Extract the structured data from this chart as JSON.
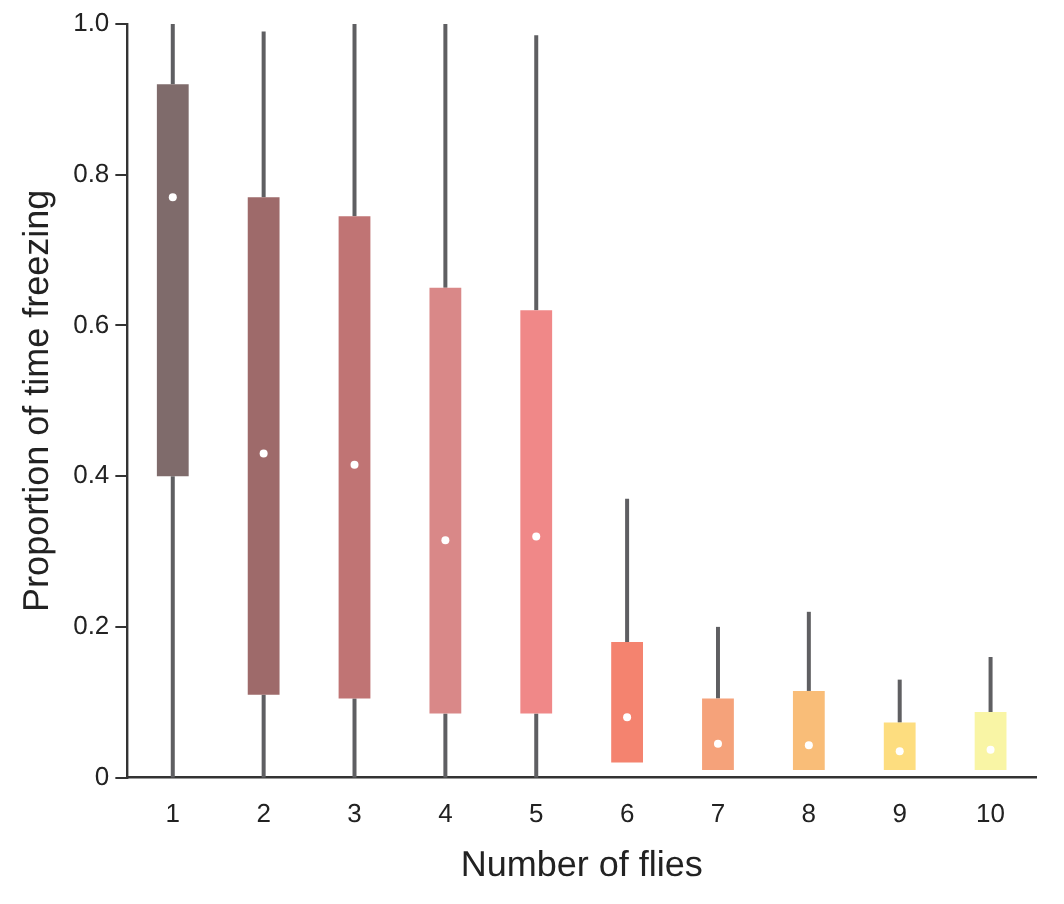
{
  "chart_data": {
    "type": "box",
    "xlabel": "Number of flies",
    "ylabel": "Proportion of time freezing",
    "categories": [
      "1",
      "2",
      "3",
      "4",
      "5",
      "6",
      "7",
      "8",
      "9",
      "10"
    ],
    "boxes": [
      {
        "low": 0,
        "q1": 0.4,
        "median": 0.77,
        "q3": 0.92,
        "high": 1.0
      },
      {
        "low": 0,
        "q1": 0.11,
        "median": 0.43,
        "q3": 0.77,
        "high": 0.99
      },
      {
        "low": 0,
        "q1": 0.105,
        "median": 0.415,
        "q3": 0.745,
        "high": 1.0
      },
      {
        "low": 0,
        "q1": 0.085,
        "median": 0.315,
        "q3": 0.65,
        "high": 1.0
      },
      {
        "low": 0,
        "q1": 0.085,
        "median": 0.32,
        "q3": 0.62,
        "high": 0.985
      },
      {
        "low": 0.02,
        "q1": 0.02,
        "median": 0.08,
        "q3": 0.18,
        "high": 0.37
      },
      {
        "low": 0.01,
        "q1": 0.01,
        "median": 0.045,
        "q3": 0.105,
        "high": 0.2
      },
      {
        "low": 0.01,
        "q1": 0.01,
        "median": 0.043,
        "q3": 0.115,
        "high": 0.22
      },
      {
        "low": 0.01,
        "q1": 0.01,
        "median": 0.035,
        "q3": 0.073,
        "high": 0.13
      },
      {
        "low": 0.01,
        "q1": 0.01,
        "median": 0.037,
        "q3": 0.087,
        "high": 0.16
      }
    ],
    "colors": [
      "#7f6b6b",
      "#9e6a6a",
      "#c07474",
      "#d98888",
      "#f08888",
      "#f4836f",
      "#f5a27a",
      "#f9bd78",
      "#fddd7f",
      "#f9f5a5"
    ],
    "ylim": [
      0,
      1
    ],
    "yticks": [
      0,
      0.2,
      0.4,
      0.6,
      0.8,
      {
        "value": 1,
        "label": "1.0"
      }
    ],
    "grid": false,
    "legend": false
  }
}
